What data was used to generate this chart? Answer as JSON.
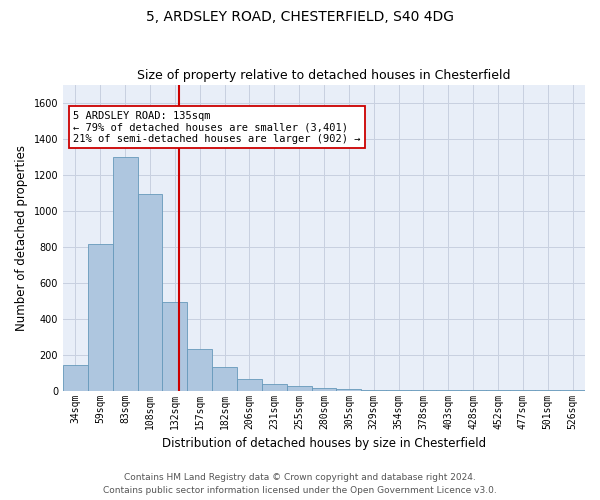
{
  "title1": "5, ARDSLEY ROAD, CHESTERFIELD, S40 4DG",
  "title2": "Size of property relative to detached houses in Chesterfield",
  "xlabel": "Distribution of detached houses by size in Chesterfield",
  "ylabel": "Number of detached properties",
  "footer1": "Contains HM Land Registry data © Crown copyright and database right 2024.",
  "footer2": "Contains public sector information licensed under the Open Government Licence v3.0.",
  "bin_labels": [
    "34sqm",
    "59sqm",
    "83sqm",
    "108sqm",
    "132sqm",
    "157sqm",
    "182sqm",
    "206sqm",
    "231sqm",
    "255sqm",
    "280sqm",
    "305sqm",
    "329sqm",
    "354sqm",
    "378sqm",
    "403sqm",
    "428sqm",
    "452sqm",
    "477sqm",
    "501sqm",
    "526sqm"
  ],
  "bar_values": [
    140,
    815,
    1295,
    1090,
    495,
    230,
    130,
    65,
    38,
    25,
    15,
    10,
    5,
    3,
    2,
    1,
    1,
    1,
    1,
    1,
    1
  ],
  "bar_color": "#aec6df",
  "bar_edgecolor": "#6699bb",
  "ylim": [
    0,
    1700
  ],
  "yticks": [
    0,
    200,
    400,
    600,
    800,
    1000,
    1200,
    1400,
    1600
  ],
  "red_line_x": 4.18,
  "annotation_text": "5 ARDSLEY ROAD: 135sqm\n← 79% of detached houses are smaller (3,401)\n21% of semi-detached houses are larger (902) →",
  "annotation_box_color": "#ffffff",
  "annotation_border_color": "#cc0000",
  "grid_color": "#c8d0e0",
  "background_color": "#e8eef8",
  "title_fontsize": 10,
  "subtitle_fontsize": 9,
  "ylabel_fontsize": 8.5,
  "xlabel_fontsize": 8.5,
  "footer_fontsize": 6.5,
  "tick_fontsize": 7,
  "annot_fontsize": 7.5
}
